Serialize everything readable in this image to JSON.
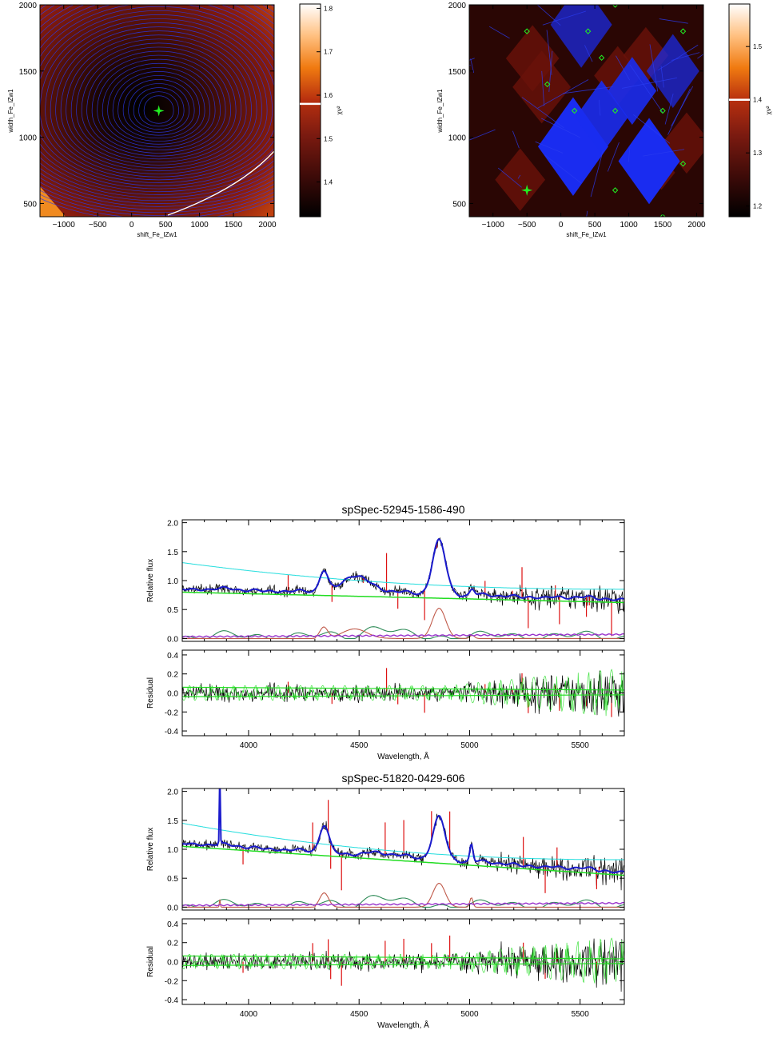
{
  "chart_data": [
    {
      "type": "heatmap",
      "xlabel": "shift_Fe_IZw1",
      "ylabel": "width_Fe_IZw1",
      "xlim": [
        -1350,
        2100
      ],
      "ylim": [
        400,
        2000
      ],
      "x_ticks": [
        "−1000",
        "−500",
        "0",
        "500",
        "1000",
        "1500",
        "2000"
      ],
      "y_ticks": [
        "500",
        "1000",
        "1500",
        "2000"
      ],
      "colorbar_label": "χν²",
      "colorbar_ticks": [
        "1.4",
        "1.5",
        "1.6",
        "1.7",
        "1.8"
      ],
      "colorbar_range": [
        1.32,
        1.81
      ],
      "colorbar_marker": 1.58,
      "best_fit": {
        "x": 400,
        "y": 1200
      },
      "colormap": [
        "#000000",
        "#3a0a08",
        "#7a1a10",
        "#b8300f",
        "#f07a10",
        "#ffc080",
        "#ffffff"
      ],
      "contour_color": "#2a3cf0"
    },
    {
      "type": "heatmap",
      "xlabel": "shift_Fe_IZw1",
      "ylabel": "width_Fe_IZw1",
      "xlim": [
        -1350,
        2100
      ],
      "ylim": [
        400,
        2000
      ],
      "x_ticks": [
        "−1000",
        "−500",
        "0",
        "500",
        "1000",
        "1500",
        "2000"
      ],
      "y_ticks": [
        "500",
        "1000",
        "1500",
        "2000"
      ],
      "colorbar_label": "χν²",
      "colorbar_ticks": [
        "1.2",
        "1.3",
        "1.4",
        "1.5"
      ],
      "colorbar_range": [
        1.18,
        1.58
      ],
      "colorbar_marker": 1.4,
      "best_fit": {
        "x": -500,
        "y": 600
      },
      "sample_points": [
        {
          "x": -500,
          "y": 1800
        },
        {
          "x": 400,
          "y": 1800
        },
        {
          "x": 800,
          "y": 2000
        },
        {
          "x": 1800,
          "y": 1800
        },
        {
          "x": 600,
          "y": 1600
        },
        {
          "x": -200,
          "y": 1400
        },
        {
          "x": 200,
          "y": 1200
        },
        {
          "x": 800,
          "y": 1200
        },
        {
          "x": 1500,
          "y": 1200
        },
        {
          "x": 1800,
          "y": 800
        },
        {
          "x": 800,
          "y": 600
        },
        {
          "x": 1500,
          "y": 400
        }
      ],
      "colormap": [
        "#000000",
        "#3a0a08",
        "#7a1a10",
        "#b8300f",
        "#f07a10",
        "#ffc080",
        "#ffffff"
      ],
      "contour_color": "#2a3cf0"
    },
    {
      "type": "line",
      "title": "spSpec-52945-1586-490",
      "xlabel": "Wavelength, Å",
      "xlim": [
        3700,
        5700
      ],
      "x_ticks": [
        "4000",
        "4500",
        "5000",
        "5500"
      ],
      "top": {
        "ylabel": "Relative flux",
        "ylim": [
          -0.05,
          2.05
        ],
        "y_ticks": [
          "0.0",
          "0.5",
          "1.0",
          "1.5",
          "2.0"
        ]
      },
      "bottom": {
        "ylabel": "Residual",
        "ylim": [
          -0.45,
          0.45
        ],
        "y_ticks": [
          "-0.4",
          "-0.2",
          "0.0",
          "0.2",
          "0.4"
        ]
      },
      "continuum": {
        "color": "#22dd22",
        "at_start": 0.8,
        "at_end": 0.62
      },
      "total_continuum": {
        "color": "#22dddd",
        "at_start": 1.31,
        "at_end": 0.85
      },
      "series_colors": {
        "data": "#000000",
        "model": "#1a1acc",
        "fe": "#2e8b57",
        "narrow": "#c05a4a",
        "host": "#9932cc",
        "residual_model": "#22dd22",
        "masked": "#dd1111"
      },
      "broad_lines": [
        {
          "center": 4340,
          "height": 0.35,
          "width": 18
        },
        {
          "center": 4480,
          "height": 0.3,
          "width": 55
        },
        {
          "center": 4862,
          "height": 0.95,
          "width": 30
        },
        {
          "center": 5012,
          "height": 0.1,
          "width": 10
        }
      ]
    },
    {
      "type": "line",
      "title": "spSpec-51820-0429-606",
      "xlabel": "Wavelength, Å",
      "xlim": [
        3700,
        5700
      ],
      "x_ticks": [
        "4000",
        "4500",
        "5000",
        "5500"
      ],
      "top": {
        "ylabel": "Relative flux",
        "ylim": [
          -0.05,
          2.05
        ],
        "y_ticks": [
          "0.0",
          "0.5",
          "1.0",
          "1.5",
          "2.0"
        ]
      },
      "bottom": {
        "ylabel": "Residual",
        "ylim": [
          -0.45,
          0.45
        ],
        "y_ticks": [
          "-0.4",
          "-0.2",
          "0.0",
          "0.2",
          "0.4"
        ]
      },
      "continuum": {
        "color": "#22dd22",
        "at_start": 1.05,
        "at_end": 0.55
      },
      "total_continuum": {
        "color": "#22dddd",
        "at_start": 1.45,
        "at_end": 0.82
      },
      "series_colors": {
        "data": "#000000",
        "model": "#1a1acc",
        "fe": "#2e8b57",
        "narrow": "#c05a4a",
        "host": "#9932cc",
        "residual_model": "#22dd22",
        "masked": "#dd1111"
      },
      "broad_lines": [
        {
          "center": 3870,
          "height": 1.2,
          "width": 2
        },
        {
          "center": 4342,
          "height": 0.45,
          "width": 20
        },
        {
          "center": 4862,
          "height": 0.75,
          "width": 28
        },
        {
          "center": 5008,
          "height": 0.3,
          "width": 7
        }
      ]
    }
  ]
}
